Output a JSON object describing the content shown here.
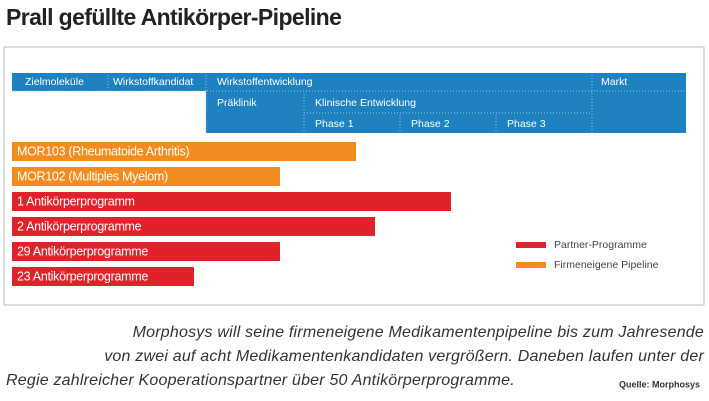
{
  "title": "Prall gefüllte Antikörper-Pipeline",
  "header": {
    "row1": [
      "Zielmoleküle",
      "Wirkstoffkandidat",
      "Wirkstoffentwicklung",
      "Markt"
    ],
    "row2": [
      "Präklinik",
      "Klinische Entwicklung"
    ],
    "row3": [
      "Phase 1",
      "Phase 2",
      "Phase 3"
    ]
  },
  "programs": [
    "MOR103 (Rheumatoide Arthritis)",
    "MOR102 (Multiples Myelom)",
    "1 Antikörperprogramm",
    "2 Antikörperprogramme",
    "29 Antikörperprogramme",
    "23 Antikörperprogramme"
  ],
  "legend": [
    "Partner-Programme",
    "Firmeneigene Pipeline"
  ],
  "caption": [
    "Morphosys will seine firmeneigene Medikamentenpipeline bis zum Jahresende",
    "von zwei auf acht Medikamentenkandidaten vergrößern. Daneben laufen unter der",
    "Regie zahlreicher Kooperationspartner über 50 Antikörperprogramme."
  ],
  "source": "Quelle: Morphosys"
}
